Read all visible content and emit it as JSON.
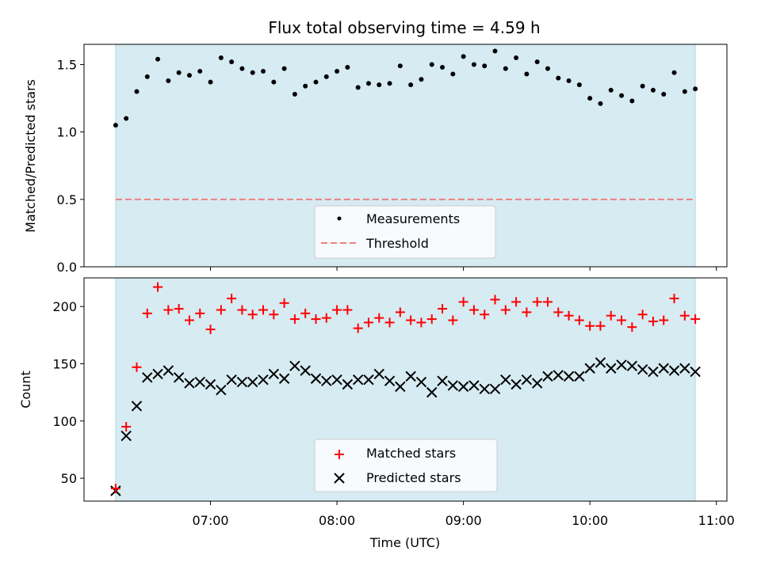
{
  "colors": {
    "shade": "#add8e6",
    "threshold": "#f08080",
    "matched": "#ff0000",
    "predicted": "#000000",
    "measurement": "#000000"
  },
  "chart_data": [
    {
      "type": "scatter",
      "title": "Flux total observing time = 4.59 h",
      "xlabel": "",
      "ylabel": "Matched/Predicted stars",
      "xlim": [
        "06:00",
        "11:05"
      ],
      "ylim": [
        0,
        1.65
      ],
      "y_ticks": [
        "0.0",
        "0.5",
        "1.0",
        "1.5"
      ],
      "shaded_interval": [
        "06:15",
        "10:50"
      ],
      "threshold": 0.5,
      "legend": {
        "position": "lower center",
        "entries": [
          "Measurements",
          "Threshold"
        ]
      },
      "series": [
        {
          "name": "Measurements",
          "x": [
            "06:15",
            "06:20",
            "06:25",
            "06:30",
            "06:35",
            "06:40",
            "06:45",
            "06:50",
            "06:55",
            "07:00",
            "07:05",
            "07:10",
            "07:15",
            "07:20",
            "07:25",
            "07:30",
            "07:35",
            "07:40",
            "07:45",
            "07:50",
            "07:55",
            "08:00",
            "08:05",
            "08:10",
            "08:15",
            "08:20",
            "08:25",
            "08:30",
            "08:35",
            "08:40",
            "08:45",
            "08:50",
            "08:55",
            "09:00",
            "09:05",
            "09:10",
            "09:15",
            "09:20",
            "09:25",
            "09:30",
            "09:35",
            "09:40",
            "09:45",
            "09:50",
            "09:55",
            "10:00",
            "10:05",
            "10:10",
            "10:15",
            "10:20",
            "10:25",
            "10:30",
            "10:35",
            "10:40",
            "10:45",
            "10:50"
          ],
          "y": [
            1.05,
            1.1,
            1.3,
            1.41,
            1.54,
            1.38,
            1.44,
            1.42,
            1.45,
            1.37,
            1.55,
            1.52,
            1.47,
            1.44,
            1.45,
            1.37,
            1.47,
            1.28,
            1.34,
            1.37,
            1.41,
            1.45,
            1.48,
            1.33,
            1.36,
            1.35,
            1.36,
            1.49,
            1.35,
            1.39,
            1.5,
            1.48,
            1.43,
            1.56,
            1.5,
            1.49,
            1.6,
            1.47,
            1.55,
            1.43,
            1.52,
            1.47,
            1.4,
            1.38,
            1.35,
            1.25,
            1.21,
            1.31,
            1.27,
            1.23,
            1.34,
            1.31,
            1.28,
            1.44,
            1.3,
            1.32
          ]
        }
      ]
    },
    {
      "type": "scatter",
      "xlabel": "Time (UTC)",
      "ylabel": "Count",
      "xlim": [
        "06:00",
        "11:05"
      ],
      "ylim": [
        30,
        225
      ],
      "x_ticks": [
        "07:00",
        "08:00",
        "09:00",
        "10:00",
        "11:00"
      ],
      "y_ticks": [
        "50",
        "100",
        "150",
        "200"
      ],
      "shaded_interval": [
        "06:15",
        "10:50"
      ],
      "legend": {
        "position": "lower center",
        "entries": [
          "Matched stars",
          "Predicted stars"
        ]
      },
      "series": [
        {
          "name": "Matched stars",
          "marker": "+",
          "x": [
            "06:15",
            "06:20",
            "06:25",
            "06:30",
            "06:35",
            "06:40",
            "06:45",
            "06:50",
            "06:55",
            "07:00",
            "07:05",
            "07:10",
            "07:15",
            "07:20",
            "07:25",
            "07:30",
            "07:35",
            "07:40",
            "07:45",
            "07:50",
            "07:55",
            "08:00",
            "08:05",
            "08:10",
            "08:15",
            "08:20",
            "08:25",
            "08:30",
            "08:35",
            "08:40",
            "08:45",
            "08:50",
            "08:55",
            "09:00",
            "09:05",
            "09:10",
            "09:15",
            "09:20",
            "09:25",
            "09:30",
            "09:35",
            "09:40",
            "09:45",
            "09:50",
            "09:55",
            "10:00",
            "10:05",
            "10:10",
            "10:15",
            "10:20",
            "10:25",
            "10:30",
            "10:35",
            "10:40",
            "10:45",
            "10:50"
          ],
          "y": [
            41,
            95,
            147,
            194,
            217,
            197,
            198,
            188,
            194,
            180,
            197,
            207,
            197,
            193,
            197,
            193,
            203,
            189,
            194,
            189,
            190,
            197,
            197,
            181,
            186,
            190,
            186,
            195,
            188,
            186,
            189,
            198,
            188,
            204,
            197,
            193,
            206,
            197,
            204,
            195,
            204,
            204,
            195,
            192,
            188,
            183,
            183,
            192,
            188,
            182,
            193,
            187,
            188,
            207,
            192,
            189
          ]
        },
        {
          "name": "Predicted stars",
          "marker": "x",
          "x": [
            "06:15",
            "06:20",
            "06:25",
            "06:30",
            "06:35",
            "06:40",
            "06:45",
            "06:50",
            "06:55",
            "07:00",
            "07:05",
            "07:10",
            "07:15",
            "07:20",
            "07:25",
            "07:30",
            "07:35",
            "07:40",
            "07:45",
            "07:50",
            "07:55",
            "08:00",
            "08:05",
            "08:10",
            "08:15",
            "08:20",
            "08:25",
            "08:30",
            "08:35",
            "08:40",
            "08:45",
            "08:50",
            "08:55",
            "09:00",
            "09:05",
            "09:10",
            "09:15",
            "09:20",
            "09:25",
            "09:30",
            "09:35",
            "09:40",
            "09:45",
            "09:50",
            "09:55",
            "10:00",
            "10:05",
            "10:10",
            "10:15",
            "10:20",
            "10:25",
            "10:30",
            "10:35",
            "10:40",
            "10:45",
            "10:50"
          ],
          "y": [
            39,
            87,
            113,
            138,
            141,
            144,
            138,
            133,
            134,
            132,
            127,
            136,
            134,
            134,
            136,
            141,
            137,
            148,
            144,
            137,
            135,
            136,
            132,
            136,
            136,
            141,
            135,
            130,
            139,
            134,
            125,
            135,
            131,
            130,
            131,
            128,
            128,
            136,
            132,
            136,
            133,
            139,
            140,
            139,
            139,
            146,
            151,
            146,
            149,
            148,
            145,
            143,
            146,
            144,
            146,
            143
          ]
        }
      ]
    }
  ]
}
